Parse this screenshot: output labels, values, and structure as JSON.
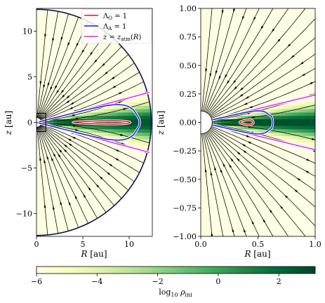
{
  "chart_data": [
    {
      "type": "streamplot",
      "panel": "left",
      "xlabel": "R [au]",
      "ylabel": "z [au]",
      "xlim": [
        0,
        12.5
      ],
      "ylim": [
        -12.5,
        12.5
      ],
      "xticks": [
        0,
        5,
        10
      ],
      "xtick_labels": [
        "0",
        "5",
        "10"
      ],
      "yticks": [
        -10,
        -5,
        0,
        5,
        10
      ],
      "ytick_labels": [
        "−10",
        "−5",
        "0",
        "5",
        "10"
      ],
      "domain_outer_radius": 12.4,
      "inset_box": {
        "r": [
          0,
          1
        ],
        "z": [
          -1,
          1
        ]
      },
      "legend_position": "top-right",
      "legend": [
        {
          "label": "Λ_O = 1",
          "color": "#e8141c"
        },
        {
          "label": "Λ_A = 1",
          "color": "#1f1fe0"
        },
        {
          "label": "z = z_atm(R)",
          "color": "#ee22ee"
        }
      ],
      "contours": {
        "lambda_O": {
          "r_inner": 4.0,
          "r_tip": 10.1,
          "half_height": 0.25
        },
        "lambda_A": {
          "r_inner": 0.3,
          "r_tip": 11.0,
          "half_height_at_tip": 0.55
        },
        "z_atm_slope": 0.27
      },
      "density_field": "log10 rho_ini, decreasing with |z|/R from the midplane"
    },
    {
      "type": "streamplot",
      "panel": "right",
      "xlabel": "R [au]",
      "ylabel": "z [au]",
      "xlim": [
        0.0,
        1.0
      ],
      "ylim": [
        -1.0,
        1.0
      ],
      "xticks": [
        0.0,
        0.5,
        1.0
      ],
      "xtick_labels": [
        "0.0",
        "0.5",
        "1.0"
      ],
      "yticks": [
        -1.0,
        -0.75,
        -0.5,
        -0.25,
        0.0,
        0.25,
        0.5,
        0.75,
        1.0
      ],
      "ytick_labels": [
        "−1.00",
        "−0.75",
        "−0.50",
        "−0.25",
        "0.00",
        "0.25",
        "0.50",
        "0.75",
        "1.00"
      ],
      "inner_boundary_radius": 0.1,
      "contours": {
        "lambda_O": {
          "r_inner": 0.34,
          "r_tip": 0.46,
          "half_height": 0.03
        },
        "lambda_A": {
          "r_inner": 0.1,
          "r_tip": 0.62,
          "half_height_at_tip": 0.05
        },
        "z_atm_slope": 0.24
      }
    },
    {
      "type": "colorbar",
      "label": "log10 ρ_ini",
      "range": [
        -6,
        3.2
      ],
      "ticks": [
        -6,
        -4,
        -2,
        0,
        2
      ],
      "tick_labels": [
        "−6",
        "−4",
        "−2",
        "0",
        "2"
      ],
      "colormap": [
        "#ffffe5",
        "#f7fcb9",
        "#d9f0a3",
        "#addd8e",
        "#78c679",
        "#41ab5d",
        "#238443",
        "#006837",
        "#004529"
      ]
    }
  ]
}
